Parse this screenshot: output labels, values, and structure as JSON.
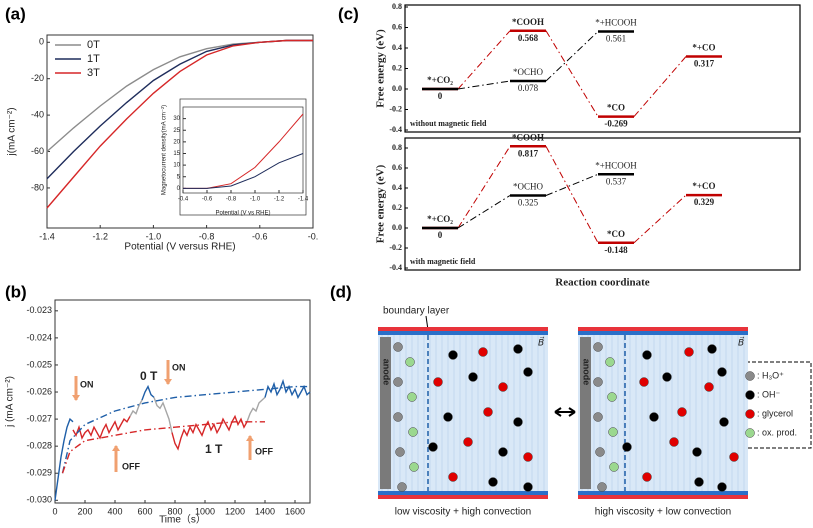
{
  "chart_data": [
    {
      "type": "line",
      "panel": "(a)",
      "xlabel": "Potential (V versus RHE)",
      "ylabel": "j(mA cm⁻²)",
      "xlim": [
        -1.4,
        -0.4
      ],
      "xticks": [
        -1.4,
        -1.2,
        {
          "value": -1,
          "label": "-1.0"
        },
        -0.8,
        -0.6,
        {
          "value": -0.4,
          "label": "-0."
        }
      ],
      "ylim": [
        -102,
        4
      ],
      "yticks": [
        0,
        -20,
        -40,
        -60,
        -80
      ],
      "legend": "upper-left",
      "series": [
        {
          "name": "0T",
          "color": "#8c8c8c",
          "x": [
            -1.4,
            -1.3,
            -1.2,
            -1.1,
            -1.0,
            -0.9,
            -0.8,
            -0.7,
            -0.6,
            -0.5,
            -0.4
          ],
          "values": [
            -60,
            -47,
            -35,
            -24,
            -15,
            -8,
            -3.5,
            -1,
            0,
            1,
            1
          ]
        },
        {
          "name": "1T",
          "color": "#1f2d5c",
          "x": [
            -1.4,
            -1.3,
            -1.2,
            -1.1,
            -1.0,
            -0.9,
            -0.8,
            -0.7,
            -0.6,
            -0.5,
            -0.4
          ],
          "values": [
            -75,
            -60,
            -46,
            -33,
            -21,
            -12,
            -5,
            -1.5,
            0,
            1,
            1
          ]
        },
        {
          "name": "3T",
          "color": "#d62728",
          "x": [
            -1.4,
            -1.3,
            -1.2,
            -1.1,
            -1.0,
            -0.9,
            -0.8,
            -0.7,
            -0.6,
            -0.5,
            -0.4
          ],
          "values": [
            -91,
            -74,
            -57,
            -42,
            -28,
            -16,
            -7,
            -2,
            0,
            1,
            1
          ]
        }
      ]
    },
    {
      "type": "line",
      "xlabel": "Potential (V vs RHE)",
      "ylabel": "Magnetocurrent density(mA cm⁻²)",
      "xlim": [
        -0.4,
        -1.4
      ],
      "xticks": [
        -0.4,
        -0.6,
        -0.8,
        {
          "value": -1,
          "label": "-1.0"
        },
        -1.2,
        -1.4
      ],
      "ylim": [
        -2,
        35
      ],
      "yticks": [
        0,
        5,
        10,
        15,
        20,
        25,
        30
      ],
      "series": [
        {
          "color": "#d62728",
          "x": [
            -0.4,
            -0.6,
            -0.8,
            -1.0,
            -1.2,
            -1.4
          ],
          "values": [
            0,
            0,
            2,
            9,
            20,
            32
          ]
        },
        {
          "color": "#1f2d5c",
          "x": [
            -0.4,
            -0.6,
            -0.8,
            -1.0,
            -1.2,
            -1.4
          ],
          "values": [
            0,
            0,
            1,
            5,
            11,
            15
          ]
        }
      ]
    },
    {
      "type": "line",
      "panel": "(b)",
      "xlabel": "Time（s）",
      "ylabel": "j (mA cm⁻²)",
      "xlim": [
        0,
        1700
      ],
      "xticks": [
        0,
        200,
        400,
        600,
        800,
        1000,
        1200,
        1400,
        1600
      ],
      "ylim": [
        -0.0301,
        -0.0226
      ],
      "yticks": [
        -0.023,
        -0.024,
        -0.025,
        -0.026,
        -0.027,
        -0.028,
        -0.029,
        {
          "value": -0.03,
          "label": "-0.030"
        }
      ],
      "series": [
        {
          "color": "#1f5fa8",
          "x": [
            0,
            20,
            40,
            60,
            80,
            100,
            120
          ],
          "values": [
            -0.03,
            -0.0292,
            -0.0284,
            -0.0278,
            -0.0273,
            -0.027,
            -0.0271
          ]
        },
        {
          "color": "#d62728",
          "x": [
            120,
            140,
            160,
            180,
            200,
            220,
            240,
            260,
            280,
            300,
            320,
            340,
            360,
            380,
            400,
            420,
            440,
            460,
            480,
            500
          ],
          "values": [
            -0.0274,
            -0.0276,
            -0.0273,
            -0.0277,
            -0.0275,
            -0.0274,
            -0.0276,
            -0.0273,
            -0.0275,
            -0.0277,
            -0.0274,
            -0.0272,
            -0.0275,
            -0.0273,
            -0.0271,
            -0.0274,
            -0.0272,
            -0.027,
            -0.0271,
            -0.0269
          ]
        },
        {
          "color": "#a6a6a6",
          "x": [
            500,
            520,
            540,
            560,
            580
          ],
          "values": [
            -0.0269,
            -0.0267,
            -0.0268,
            -0.0265,
            -0.0263
          ]
        },
        {
          "color": "#1f5fa8",
          "x": [
            580,
            600,
            620,
            640,
            660
          ],
          "values": [
            -0.0263,
            -0.026,
            -0.0258,
            -0.0261,
            -0.0262
          ]
        },
        {
          "color": "#a6a6a6",
          "x": [
            660,
            680,
            700,
            720,
            740,
            760,
            780
          ],
          "values": [
            -0.0262,
            -0.0265,
            -0.0266,
            -0.0264,
            -0.0267,
            -0.027,
            -0.0275
          ]
        },
        {
          "color": "#d62728",
          "x": [
            780,
            800,
            820,
            840,
            860,
            880,
            900,
            920,
            940,
            960,
            980,
            1000,
            1020,
            1040,
            1060,
            1080,
            1100,
            1120,
            1140,
            1160,
            1180,
            1200,
            1220,
            1240,
            1260,
            1280
          ],
          "values": [
            -0.0275,
            -0.0279,
            -0.0281,
            -0.0277,
            -0.0274,
            -0.0276,
            -0.0273,
            -0.0275,
            -0.0272,
            -0.0274,
            -0.0276,
            -0.0273,
            -0.0271,
            -0.0274,
            -0.0272,
            -0.0275,
            -0.0273,
            -0.027,
            -0.0272,
            -0.0274,
            -0.0271,
            -0.0269,
            -0.0272,
            -0.027,
            -0.0273,
            -0.0271
          ]
        },
        {
          "color": "#a6a6a6",
          "x": [
            1280,
            1300,
            1320,
            1340,
            1360,
            1380,
            1400
          ],
          "values": [
            -0.0271,
            -0.0268,
            -0.0266,
            -0.0267,
            -0.0264,
            -0.0263,
            -0.0262
          ]
        },
        {
          "color": "#1f5fa8",
          "x": [
            1400,
            1420,
            1440,
            1460,
            1480,
            1500,
            1520,
            1540,
            1560,
            1580,
            1600,
            1620,
            1640,
            1660,
            1680,
            1700
          ],
          "values": [
            -0.0262,
            -0.0258,
            -0.026,
            -0.0257,
            -0.0261,
            -0.0259,
            -0.0256,
            -0.026,
            -0.0258,
            -0.0261,
            -0.0259,
            -0.0262,
            -0.026,
            -0.0258,
            -0.0261,
            -0.026
          ]
        },
        {
          "color": "#1f5fa8",
          "dash": "dashdot",
          "x": [
            50,
            100,
            200,
            400,
            600,
            800,
            1000,
            1200,
            1400,
            1600,
            1700
          ],
          "values": [
            -0.029,
            -0.0278,
            -0.0272,
            -0.0267,
            -0.0264,
            -0.0262,
            -0.0261,
            -0.026,
            -0.0259,
            -0.0258,
            -0.0258
          ]
        },
        {
          "color": "#d62728",
          "dash": "dashdot",
          "x": [
            50,
            100,
            200,
            400,
            600,
            800,
            1000,
            1200,
            1400
          ],
          "values": [
            -0.029,
            -0.0282,
            -0.0278,
            -0.0276,
            -0.0274,
            -0.0273,
            -0.0272,
            -0.0271,
            -0.0271
          ]
        }
      ],
      "annotations": [
        {
          "text": "ON",
          "color": "#f0a070"
        },
        {
          "text": "OFF",
          "color": "#f0a070"
        },
        {
          "text": "ON",
          "color": "#f0a070"
        },
        {
          "text": "OFF",
          "color": "#f0a070"
        },
        {
          "text": "0 T",
          "color": "#1f5fa8"
        },
        {
          "text": "1 T",
          "color": "#d62728"
        }
      ]
    },
    {
      "type": "energy",
      "panel": "(c)",
      "ylabel": "Free energy (eV)",
      "note": "without magnetic field",
      "ylim": [
        -0.4,
        0.8
      ],
      "yticks": [
        0.8,
        0.6,
        0.4,
        0.2,
        {
          "value": 0,
          "label": "0.0"
        },
        -0.2,
        -0.4
      ],
      "series": [
        {
          "color": "#c00000",
          "x": [
            0,
            1,
            2,
            3
          ],
          "labels": [
            "*+CO₂",
            "*COOH",
            "*CO",
            "*+CO"
          ],
          "values": [
            0,
            0.568,
            -0.269,
            0.317
          ]
        },
        {
          "color": "#000000",
          "x": [
            0,
            1,
            2
          ],
          "labels": [
            null,
            "*OCHO",
            "*+HCOOH"
          ],
          "values": [
            0,
            0.078,
            0.561
          ]
        }
      ]
    },
    {
      "type": "energy",
      "ylabel": "Free energy (eV)",
      "note": "with magnetic field",
      "xlabel": "Reaction coordinate",
      "ylim": [
        -0.4,
        0.88
      ],
      "yticks": [
        0.8,
        0.6,
        0.4,
        0.2,
        {
          "value": 0,
          "label": "0.0"
        },
        -0.2,
        -0.4
      ],
      "series": [
        {
          "color": "#c00000",
          "x": [
            0,
            1,
            2,
            3
          ],
          "labels": [
            "*+CO₂",
            "*COOH",
            "*CO",
            "*+CO"
          ],
          "values": [
            0,
            0.817,
            -0.148,
            0.329
          ]
        },
        {
          "color": "#000000",
          "x": [
            0,
            1,
            2
          ],
          "labels": [
            null,
            "*OCHO",
            "*+HCOOH"
          ],
          "values": [
            0,
            0.325,
            0.537
          ]
        }
      ]
    }
  ],
  "diagram": {
    "panel": "(d)",
    "boundary_label": "boundary layer",
    "field_label": "B⃗",
    "anode_label": "anode",
    "cells": [
      {
        "caption": "low viscosity + high convection"
      },
      {
        "caption": "high viscosity + low convection"
      }
    ],
    "legend": [
      {
        "label": ": H₃O⁺",
        "color": "#8a8a8a"
      },
      {
        "label": ": OH⁻",
        "color": "#000000"
      },
      {
        "label": ": glycerol",
        "color": "#e00000"
      },
      {
        "label": ": ox. prod.",
        "color": "#9bd88f"
      }
    ]
  }
}
